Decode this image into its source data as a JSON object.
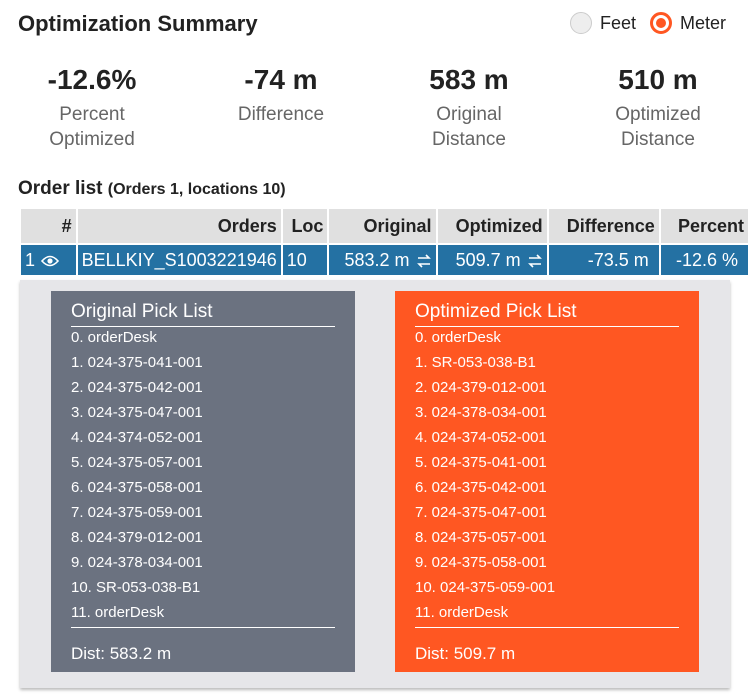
{
  "header": {
    "title": "Optimization Summary",
    "units": [
      {
        "label": "Feet",
        "selected": false
      },
      {
        "label": "Meter",
        "selected": true
      }
    ]
  },
  "summary": [
    {
      "value": "-12.6%",
      "label": "Percent Optimized"
    },
    {
      "value": "-74 m",
      "label": "Difference"
    },
    {
      "value": "583 m",
      "label": "Original Distance"
    },
    {
      "value": "510 m",
      "label": "Optimized Distance"
    }
  ],
  "order_list": {
    "title": "Order list",
    "subtitle": "(Orders 1, locations 10)"
  },
  "table": {
    "columns": [
      "#",
      "Orders",
      "Loc",
      "Original",
      "Optimized",
      "Difference",
      "Percent"
    ],
    "rows": [
      [
        "1",
        "BELLKIY_S1003221946",
        "10",
        "583.2 m",
        "509.7 m",
        "-73.5 m",
        "-12.6 %"
      ]
    ]
  },
  "pick_lists": [
    {
      "title": "Original Pick List",
      "items": [
        "0. orderDesk",
        "1. 024-375-041-001",
        "2. 024-375-042-001",
        "3. 024-375-047-001",
        "4. 024-374-052-001",
        "5. 024-375-057-001",
        "6. 024-375-058-001",
        "7. 024-375-059-001",
        "8. 024-379-012-001",
        "9. 024-378-034-001",
        "10. SR-053-038-B1",
        "11. orderDesk"
      ],
      "dist": "Dist: 583.2 m"
    },
    {
      "title": "Optimized Pick List",
      "items": [
        "0. orderDesk",
        "1. SR-053-038-B1",
        "2. 024-379-012-001",
        "3. 024-378-034-001",
        "4. 024-374-052-001",
        "5. 024-375-041-001",
        "6. 024-375-042-001",
        "7. 024-375-047-001",
        "8. 024-375-057-001",
        "9. 024-375-058-001",
        "10. 024-375-059-001",
        "11. orderDesk"
      ],
      "dist": "Dist: 509.7 m"
    }
  ]
}
